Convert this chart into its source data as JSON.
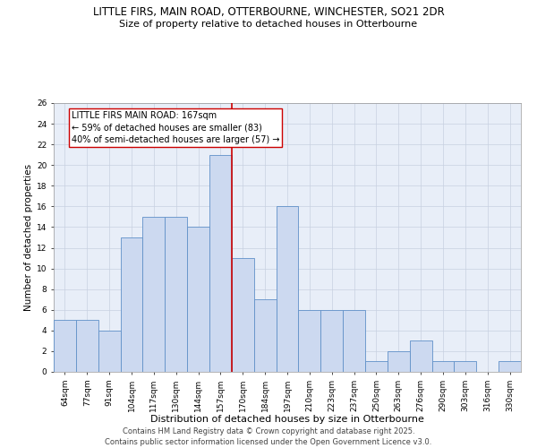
{
  "title": "LITTLE FIRS, MAIN ROAD, OTTERBOURNE, WINCHESTER, SO21 2DR",
  "subtitle": "Size of property relative to detached houses in Otterbourne",
  "xlabel": "Distribution of detached houses by size in Otterbourne",
  "ylabel": "Number of detached properties",
  "categories": [
    "64sqm",
    "77sqm",
    "91sqm",
    "104sqm",
    "117sqm",
    "130sqm",
    "144sqm",
    "157sqm",
    "170sqm",
    "184sqm",
    "197sqm",
    "210sqm",
    "223sqm",
    "237sqm",
    "250sqm",
    "263sqm",
    "276sqm",
    "290sqm",
    "303sqm",
    "316sqm",
    "330sqm"
  ],
  "values": [
    5,
    5,
    4,
    13,
    15,
    15,
    14,
    21,
    11,
    7,
    16,
    6,
    6,
    6,
    1,
    2,
    3,
    1,
    1,
    0,
    1
  ],
  "bar_color": "#ccd9f0",
  "bar_edge_color": "#6090c8",
  "vline_x": 7.5,
  "vline_color": "#cc0000",
  "annotation_line1": "LITTLE FIRS MAIN ROAD: 167sqm",
  "annotation_line2": "← 59% of detached houses are smaller (83)",
  "annotation_line3": "40% of semi-detached houses are larger (57) →",
  "annotation_box_color": "#ffffff",
  "annotation_box_edge_color": "#cc0000",
  "ylim": [
    0,
    26
  ],
  "yticks": [
    0,
    2,
    4,
    6,
    8,
    10,
    12,
    14,
    16,
    18,
    20,
    22,
    24,
    26
  ],
  "grid_color": "#c8d0e0",
  "background_color": "#e8eef8",
  "footer_line1": "Contains HM Land Registry data © Crown copyright and database right 2025.",
  "footer_line2": "Contains public sector information licensed under the Open Government Licence v3.0.",
  "title_fontsize": 8.5,
  "subtitle_fontsize": 8,
  "xlabel_fontsize": 8,
  "ylabel_fontsize": 7.5,
  "tick_fontsize": 6.5,
  "annotation_fontsize": 7,
  "footer_fontsize": 6
}
